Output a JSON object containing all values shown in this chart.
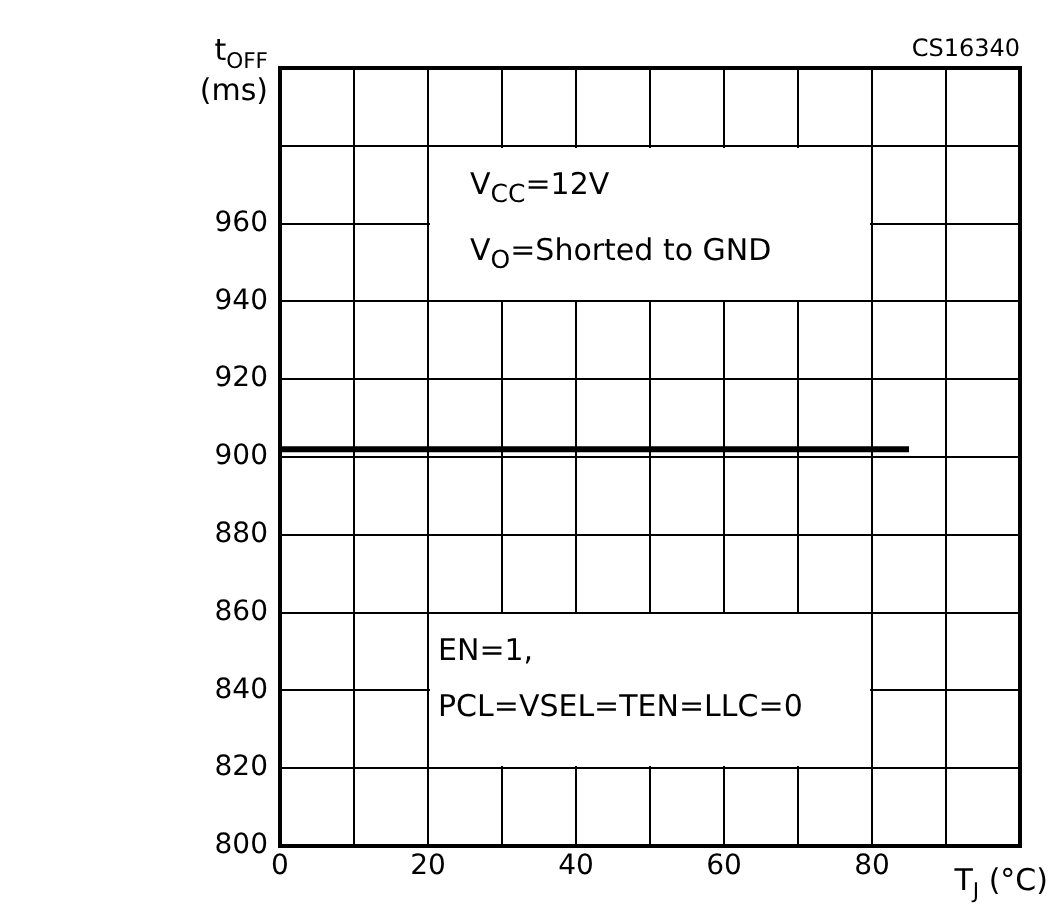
{
  "chart_data": {
    "type": "line",
    "xlabel": "T$_{J}$ (°C)",
    "ylabel": "t$_{OFF}$\n(ms)",
    "series": [
      {
        "color": "#000000",
        "x": [
          0,
          85
        ],
        "values": [
          902,
          902
        ]
      }
    ],
    "xlim": [
      0,
      100
    ],
    "xticks": [
      0,
      {
        "value": 10,
        "label": null
      },
      20,
      {
        "value": 30,
        "label": null
      },
      40,
      {
        "value": 50,
        "label": null
      },
      60,
      {
        "value": 70,
        "label": null
      },
      80,
      {
        "value": 90,
        "label": null
      },
      {
        "value": 100,
        "label": null
      }
    ],
    "ylim": [
      800,
      1000
    ],
    "yticks": [
      800,
      820,
      840,
      860,
      880,
      900,
      920,
      940,
      960,
      {
        "value": 980,
        "label": null
      },
      {
        "value": 1000,
        "label": null
      }
    ],
    "grid": true,
    "legend": false,
    "marker": "none",
    "line_style": "solid",
    "annotations": [
      "CS16340",
      "V$_{CC}$=12V\nV$_{O}$=Shorted to GND",
      "EN=1,\nPCL=VSEL=TEN=LLC=0"
    ]
  }
}
